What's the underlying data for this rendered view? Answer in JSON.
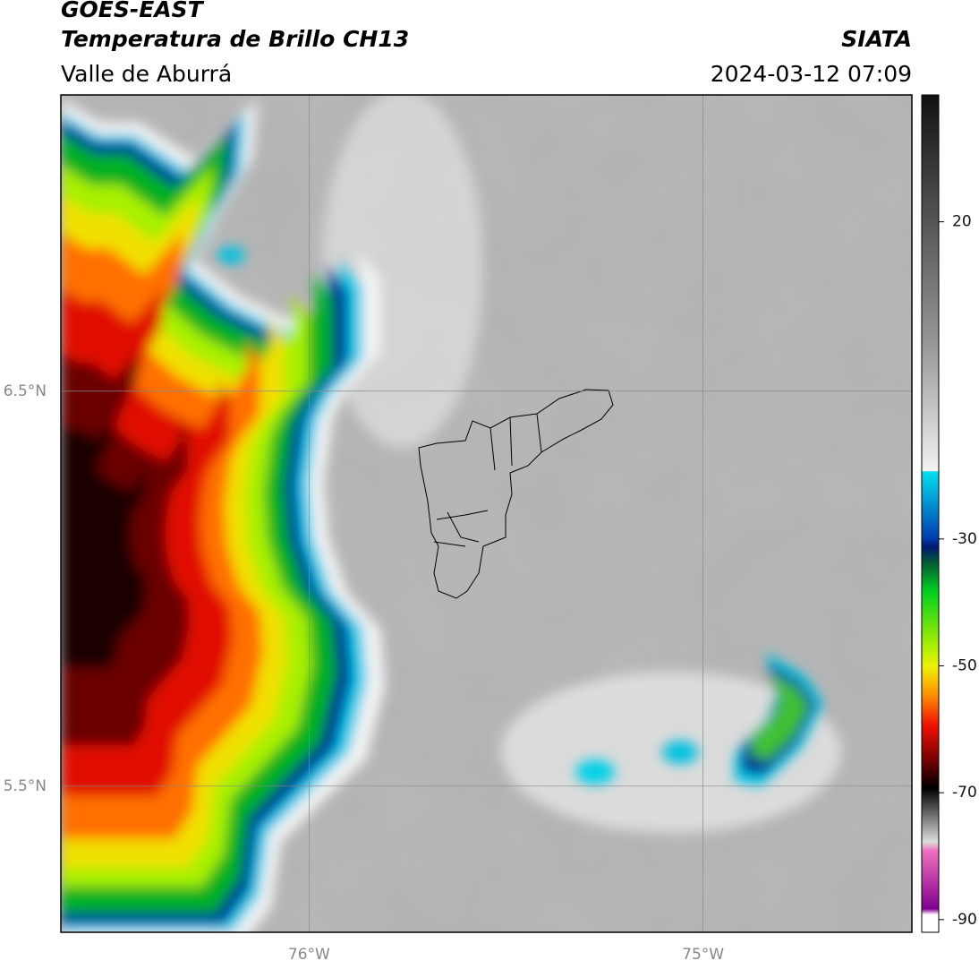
{
  "header": {
    "title": "GOES-EAST",
    "subtitle": "Temperatura de Brillo CH13",
    "region": "Valle de Aburrá",
    "source": "SIATA",
    "timestamp": "2024-03-12 07:09"
  },
  "map": {
    "lon_lim": [
      -76.63,
      -74.47
    ],
    "lat_lim": [
      5.13,
      7.25
    ],
    "lon_ticks": [
      {
        "value": -76,
        "label": "76°W"
      },
      {
        "value": -75,
        "label": "75°W"
      }
    ],
    "lat_ticks": [
      {
        "value": 6.5,
        "label": "6.5°N"
      },
      {
        "value": 5.5,
        "label": "5.5°N"
      }
    ],
    "colorbar": {
      "lim": [
        -92,
        40
      ],
      "ticks": [
        20,
        -30,
        -50,
        -70,
        -90
      ]
    }
  }
}
